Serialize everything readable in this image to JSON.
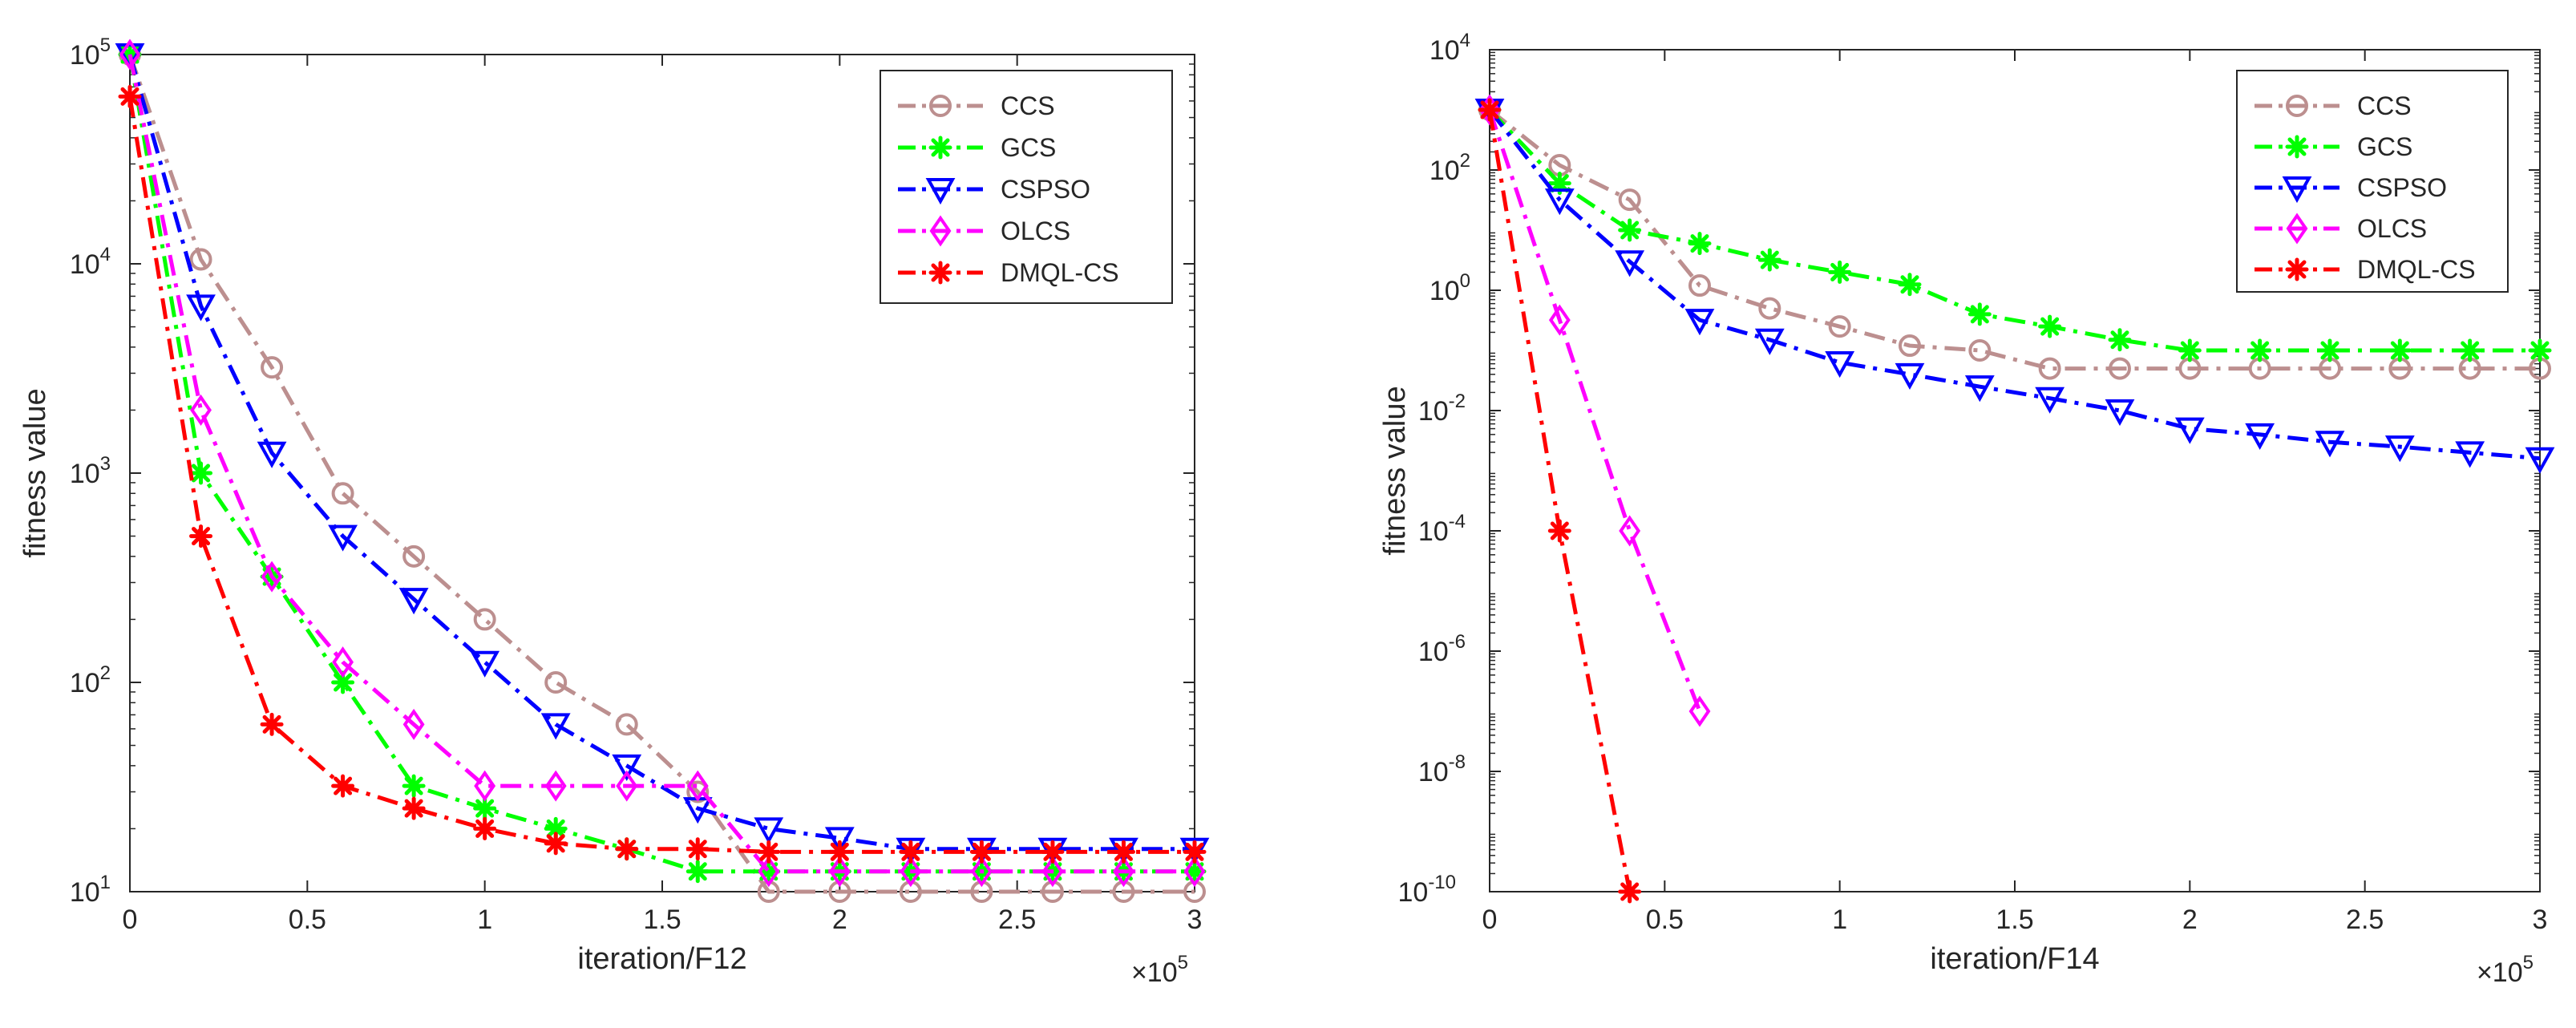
{
  "chart_data": [
    {
      "type": "line",
      "title": "",
      "xlabel": "iteration/F12",
      "ylabel": "fitness value",
      "x_exponent_label": {
        "base": "×10",
        "exp": "5"
      },
      "y_scale": "log",
      "xlim": [
        0,
        3
      ],
      "ylim": [
        10,
        100000
      ],
      "grid": false,
      "legend_position": "top-right",
      "x_ticks": [
        0,
        0.5,
        1,
        1.5,
        2,
        2.5,
        3
      ],
      "x_tick_labels": [
        "0",
        "0.5",
        "1",
        "1.5",
        "2",
        "2.5",
        "3"
      ],
      "y_ticks": [
        10,
        100,
        1000,
        10000,
        100000
      ],
      "y_tick_labels": [
        {
          "base": "10",
          "exp": "1"
        },
        {
          "base": "10",
          "exp": "2"
        },
        {
          "base": "10",
          "exp": "3"
        },
        {
          "base": "10",
          "exp": "4"
        },
        {
          "base": "10",
          "exp": "5"
        }
      ],
      "x": [
        0,
        0.2,
        0.4,
        0.6,
        0.8,
        1.0,
        1.2,
        1.4,
        1.6,
        1.8,
        2.0,
        2.2,
        2.4,
        2.6,
        2.8,
        3.0
      ],
      "series": [
        {
          "name": "CCS",
          "color": "#bc8f8f",
          "marker": "circle",
          "dash": "dashdot",
          "values": [
            100000,
            10500,
            3200,
            800,
            400,
            200,
            100,
            63,
            30,
            10,
            10,
            10,
            10,
            10,
            10,
            10
          ]
        },
        {
          "name": "GCS",
          "color": "#00ff00",
          "marker": "asterisk",
          "dash": "dashdot",
          "values": [
            100000,
            1000,
            320,
            100,
            32,
            25,
            20,
            16,
            12.5,
            12.5,
            12.5,
            12.5,
            12.5,
            12.5,
            12.5,
            12.5
          ]
        },
        {
          "name": "CSPSO",
          "color": "#0000ff",
          "marker": "triangle-down",
          "dash": "dashdot",
          "values": [
            100000,
            6300,
            1250,
            500,
            250,
            125,
            63,
            40,
            25,
            20,
            18,
            16,
            16,
            16,
            16,
            16
          ]
        },
        {
          "name": "OLCS",
          "color": "#ff00ff",
          "marker": "diamond",
          "dash": "dashdot",
          "values": [
            100000,
            2000,
            320,
            125,
            63,
            32,
            32,
            32,
            32,
            12.5,
            12.5,
            12.5,
            12.5,
            12.5,
            12.5,
            12.5
          ]
        },
        {
          "name": "DMQL-CS",
          "color": "#ff0000",
          "marker": "asterisk",
          "dash": "dashdot",
          "values": [
            63000,
            500,
            63,
            32,
            25,
            20,
            17,
            16,
            16,
            15.5,
            15.5,
            15.5,
            15.5,
            15.5,
            15.5,
            15.5
          ]
        }
      ]
    },
    {
      "type": "line",
      "title": "",
      "xlabel": "iteration/F14",
      "ylabel": "fitness value",
      "x_exponent_label": {
        "base": "×10",
        "exp": "5"
      },
      "y_scale": "log",
      "xlim": [
        0,
        3
      ],
      "ylim": [
        1e-10,
        10000
      ],
      "grid": false,
      "legend_position": "top-right",
      "x_ticks": [
        0,
        0.5,
        1,
        1.5,
        2,
        2.5,
        3
      ],
      "x_tick_labels": [
        "0",
        "0.5",
        "1",
        "1.5",
        "2",
        "2.5",
        "3"
      ],
      "y_ticks": [
        1e-10,
        1e-08,
        1e-06,
        0.0001,
        0.01,
        1,
        100,
        10000
      ],
      "y_tick_labels": [
        {
          "base": "10",
          "exp": "-10"
        },
        {
          "base": "10",
          "exp": "-8"
        },
        {
          "base": "10",
          "exp": "-6"
        },
        {
          "base": "10",
          "exp": "-4"
        },
        {
          "base": "10",
          "exp": "-2"
        },
        {
          "base": "10",
          "exp": "0"
        },
        {
          "base": "10",
          "exp": "2"
        },
        {
          "base": "10",
          "exp": "4"
        }
      ],
      "series": [
        {
          "name": "CCS",
          "color": "#bc8f8f",
          "marker": "circle",
          "dash": "dashdot",
          "x": [
            0,
            0.2,
            0.4,
            0.6,
            0.8,
            1.0,
            1.2,
            1.4,
            1.6,
            1.8,
            2.0,
            2.2,
            2.4,
            2.6,
            2.8,
            3.0
          ],
          "values": [
            1000,
            120,
            32,
            1.2,
            0.5,
            0.25,
            0.12,
            0.1,
            0.05,
            0.05,
            0.05,
            0.05,
            0.05,
            0.05,
            0.05,
            0.05
          ]
        },
        {
          "name": "GCS",
          "color": "#00ff00",
          "marker": "asterisk",
          "dash": "dashdot",
          "x": [
            0,
            0.2,
            0.4,
            0.6,
            0.8,
            1.0,
            1.2,
            1.4,
            1.6,
            1.8,
            2.0,
            2.2,
            2.4,
            2.6,
            2.8,
            3.0
          ],
          "values": [
            1000,
            60,
            10,
            6,
            3.2,
            2,
            1.25,
            0.4,
            0.25,
            0.15,
            0.1,
            0.1,
            0.1,
            0.1,
            0.1,
            0.1
          ]
        },
        {
          "name": "CSPSO",
          "color": "#0000ff",
          "marker": "triangle-down",
          "dash": "dashdot",
          "x": [
            0,
            0.2,
            0.4,
            0.6,
            0.8,
            1.0,
            1.2,
            1.4,
            1.6,
            1.8,
            2.0,
            2.2,
            2.4,
            2.6,
            2.8,
            3.0
          ],
          "values": [
            1000,
            32,
            3,
            0.32,
            0.15,
            0.063,
            0.04,
            0.025,
            0.016,
            0.01,
            0.005,
            0.004,
            0.003,
            0.0025,
            0.002,
            0.0016
          ]
        },
        {
          "name": "OLCS",
          "color": "#ff00ff",
          "marker": "diamond",
          "dash": "dashdot",
          "x": [
            0,
            0.2,
            0.4,
            0.6
          ],
          "values": [
            1000,
            0.32,
            0.0001,
            1e-07
          ]
        },
        {
          "name": "DMQL-CS",
          "color": "#ff0000",
          "marker": "asterisk",
          "dash": "dashdot",
          "x": [
            0,
            0.2,
            0.4
          ],
          "values": [
            1000,
            0.0001,
            1e-10
          ]
        }
      ]
    }
  ]
}
